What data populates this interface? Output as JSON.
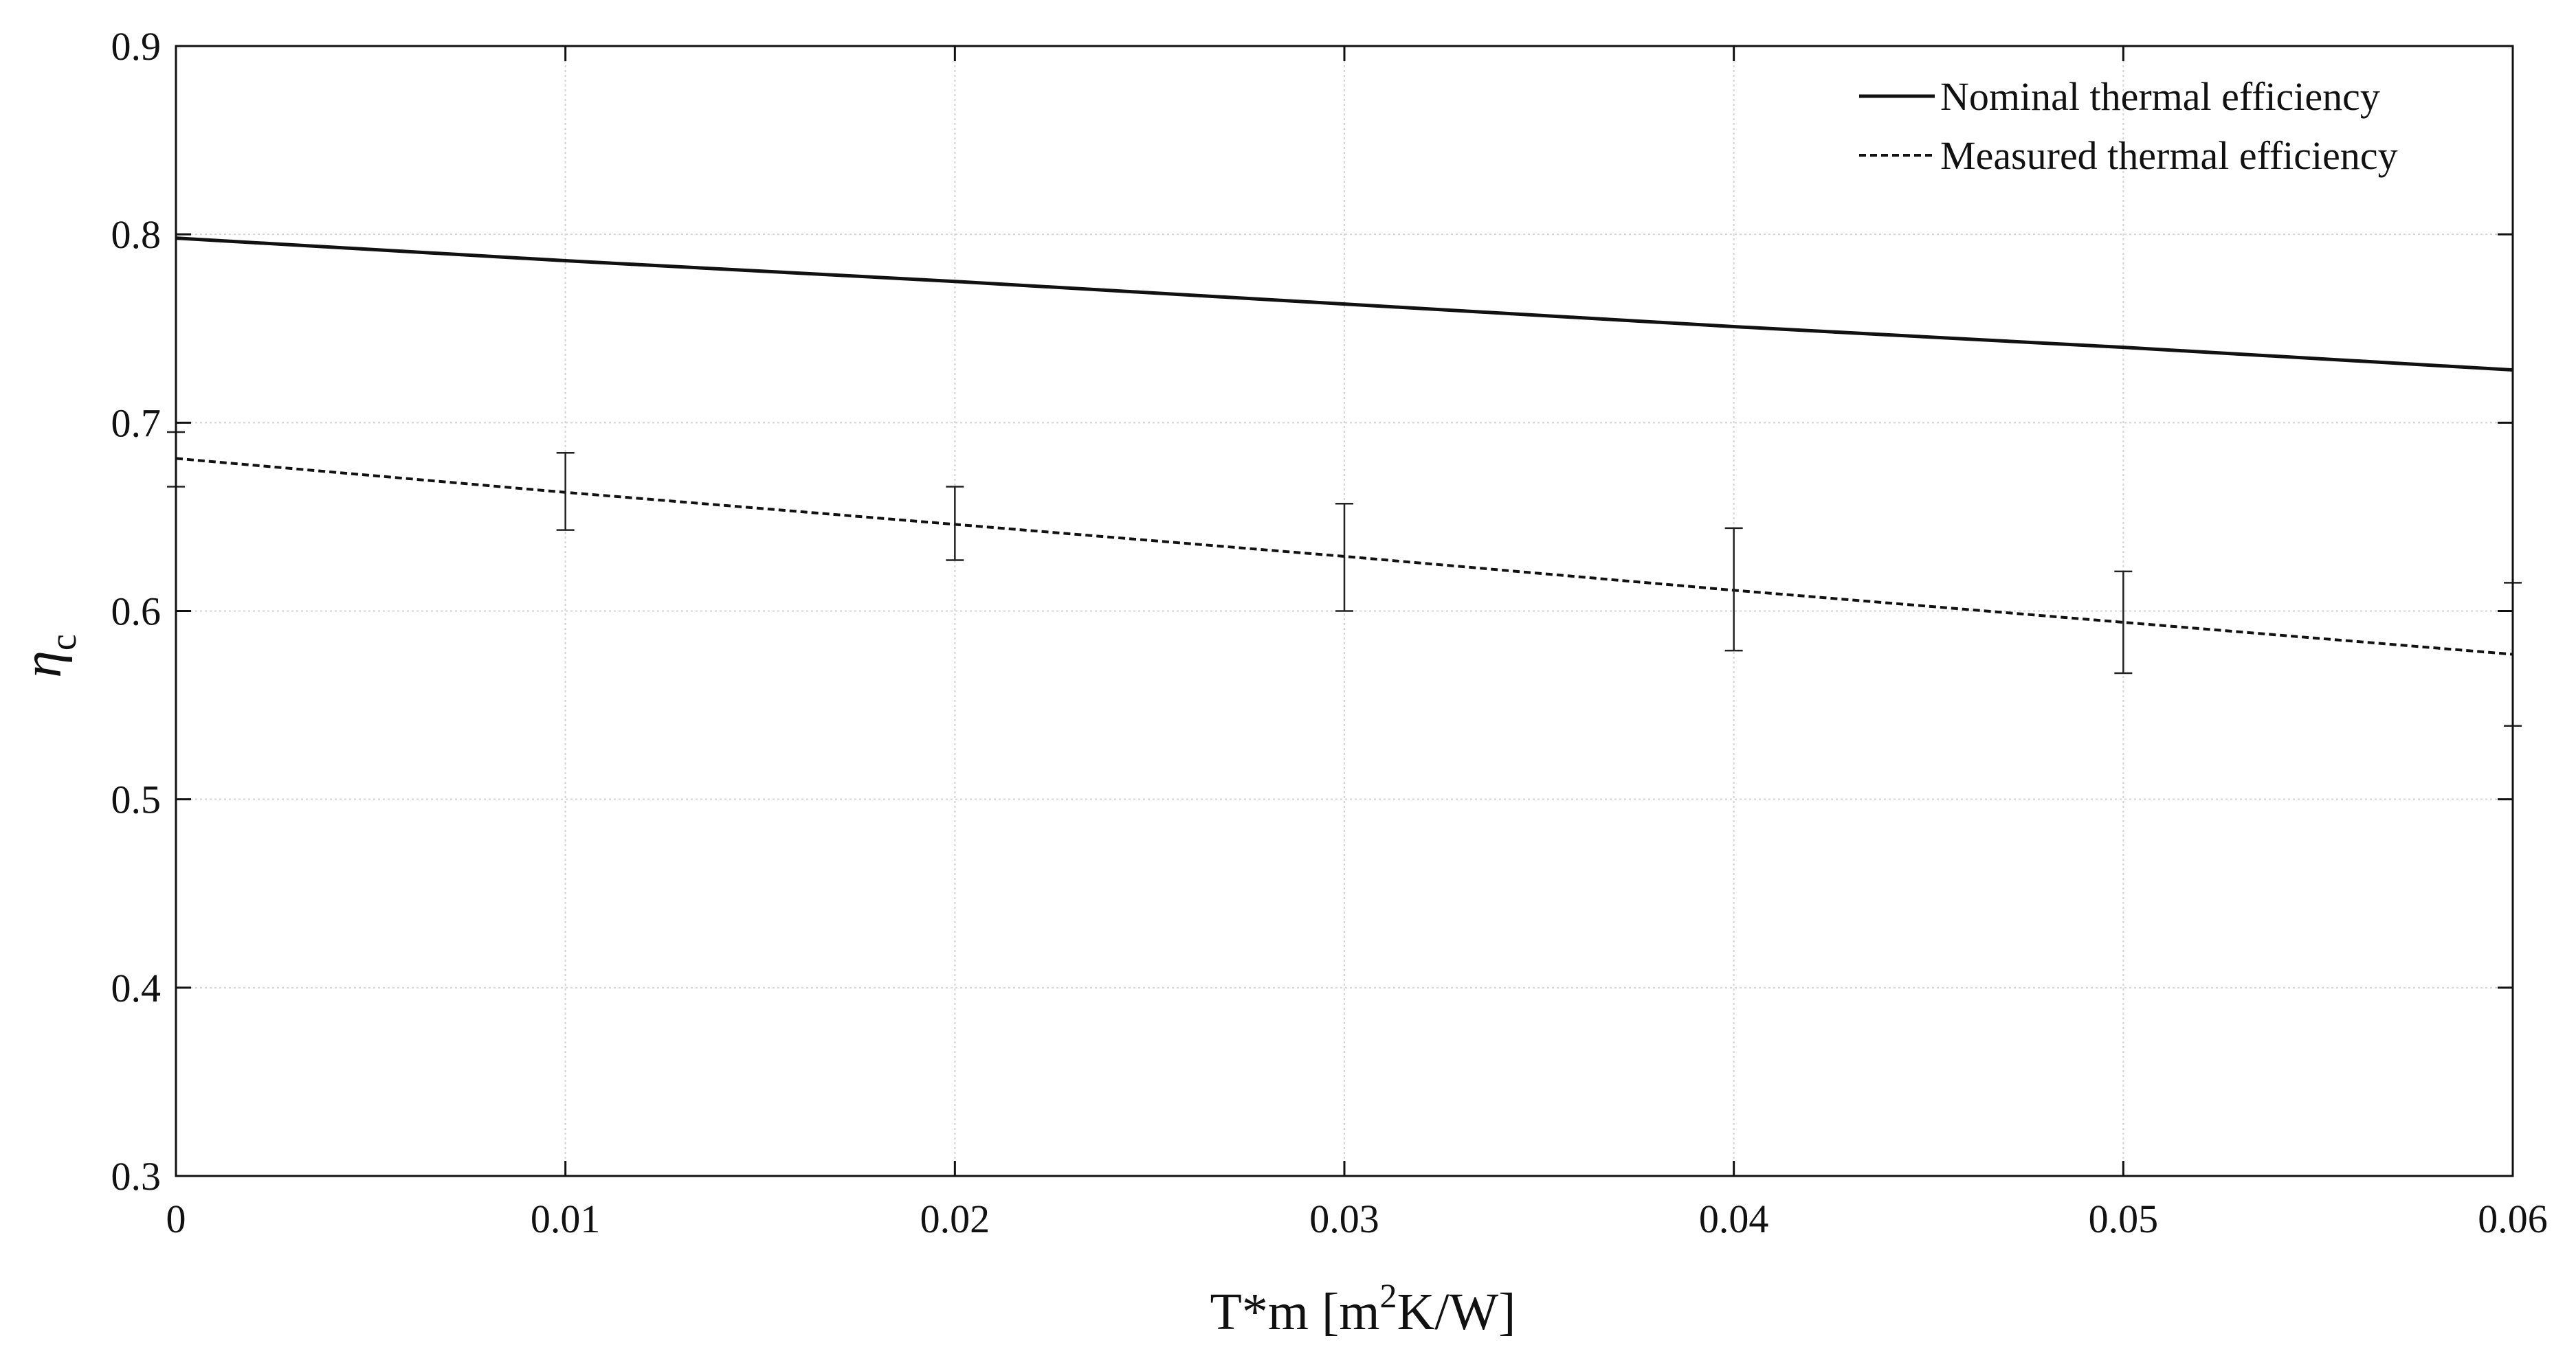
{
  "chart_data": {
    "type": "line",
    "title": "",
    "xlabel": {
      "main": "T*m [m",
      "sup": "2",
      "rest": "K/W]"
    },
    "ylabel": {
      "main": "η",
      "sub": "c"
    },
    "xlim": [
      0,
      0.06
    ],
    "ylim": [
      0.3,
      0.9
    ],
    "xticks": [
      "0",
      "0.01",
      "0.02",
      "0.03",
      "0.04",
      "0.05",
      "0.06"
    ],
    "yticks": [
      "0.3",
      "0.4",
      "0.5",
      "0.6",
      "0.7",
      "0.8",
      "0.9"
    ],
    "grid": true,
    "legend_position": "top-right",
    "series": [
      {
        "name": "Nominal thermal efficiency",
        "style": "solid",
        "x": [
          0,
          0.01,
          0.02,
          0.03,
          0.04,
          0.05,
          0.06
        ],
        "y": [
          0.798,
          0.786,
          0.775,
          0.763,
          0.751,
          0.74,
          0.728
        ]
      },
      {
        "name": "Measured thermal efficiency",
        "style": "dashed",
        "x": [
          0,
          0.01,
          0.02,
          0.03,
          0.04,
          0.05,
          0.06
        ],
        "y": [
          0.681,
          0.663,
          0.646,
          0.629,
          0.611,
          0.594,
          0.577
        ],
        "error_bars": [
          {
            "x": 0,
            "low": 0.666,
            "high": 0.695
          },
          {
            "x": 0.01,
            "low": 0.643,
            "high": 0.684
          },
          {
            "x": 0.02,
            "low": 0.627,
            "high": 0.666
          },
          {
            "x": 0.03,
            "low": 0.6,
            "high": 0.657
          },
          {
            "x": 0.04,
            "low": 0.579,
            "high": 0.644
          },
          {
            "x": 0.05,
            "low": 0.567,
            "high": 0.621
          },
          {
            "x": 0.06,
            "low": 0.539,
            "high": 0.615
          }
        ]
      }
    ]
  }
}
